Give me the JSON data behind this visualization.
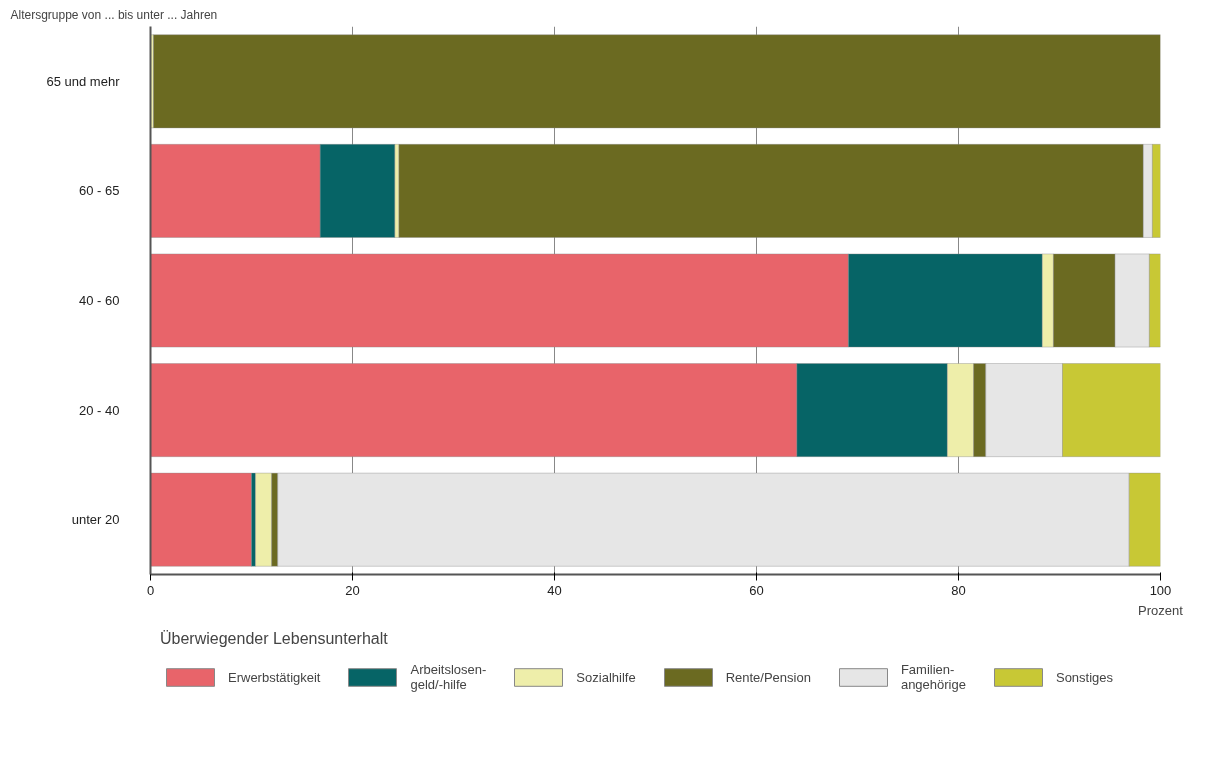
{
  "chart_data": {
    "type": "bar",
    "orientation": "horizontal",
    "stacked": true,
    "ylabel": "Altersgruppe von ... bis unter ... Jahren",
    "xlabel": "Prozent",
    "legend_title": "Überwiegender Lebensunterhalt",
    "categories": [
      "65 und mehr",
      "60 - 65",
      "40 - 60",
      "20 - 40",
      "unter 20"
    ],
    "series": [
      {
        "name": "Erwerbstätigkeit",
        "color": "#e8646a",
        "values": [
          0,
          16.8,
          69.1,
          64.0,
          10.0
        ]
      },
      {
        "name": "Arbeitslosen-\ngeld/-hilfe",
        "color": "#066466",
        "values": [
          0,
          7.4,
          19.2,
          14.9,
          0.4
        ]
      },
      {
        "name": "Sozialhilfe",
        "color": "#eeeeaa",
        "values": [
          0.3,
          0.4,
          1.1,
          2.6,
          1.6
        ]
      },
      {
        "name": "Rente/Pension",
        "color": "#6b6a21",
        "values": [
          99.7,
          73.7,
          6.1,
          1.2,
          0.6
        ]
      },
      {
        "name": "Familien-\nangehörige",
        "color": "#e6e6e6",
        "values": [
          0,
          0.9,
          3.4,
          7.6,
          84.3
        ]
      },
      {
        "name": "Sonstiges",
        "color": "#c8c835",
        "values": [
          0,
          0.8,
          1.1,
          9.7,
          3.1
        ]
      }
    ],
    "xlim": [
      0,
      100
    ],
    "xticks": [
      0,
      20,
      40,
      60,
      80,
      100
    ],
    "grid": "x",
    "legend": "bottom"
  }
}
